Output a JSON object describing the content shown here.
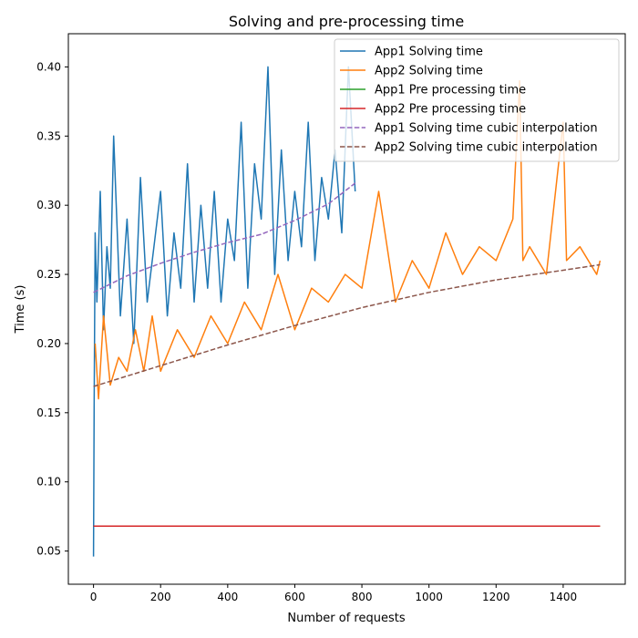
{
  "chart_data": {
    "type": "line",
    "title": "Solving and pre-processing time",
    "xlabel": "Number of requests",
    "ylabel": "Time (s)",
    "xlim": [
      -75,
      1585
    ],
    "ylim": [
      0.026,
      0.424
    ],
    "xticks": [
      0,
      200,
      400,
      600,
      800,
      1000,
      1200,
      1400
    ],
    "xtick_labels": [
      "0",
      "200",
      "400",
      "600",
      "800",
      "1000",
      "1200",
      "1400"
    ],
    "yticks": [
      0.05,
      0.1,
      0.15,
      0.2,
      0.25,
      0.3,
      0.35,
      0.4
    ],
    "ytick_labels": [
      "0.05",
      "0.10",
      "0.15",
      "0.20",
      "0.25",
      "0.30",
      "0.35",
      "0.40"
    ],
    "grid": false,
    "legend_position": "top-right",
    "series": [
      {
        "name": "App1 Solving time",
        "color": "#1f77b4",
        "style": "solid",
        "x": [
          0,
          2,
          5,
          10,
          20,
          30,
          40,
          50,
          60,
          80,
          100,
          120,
          140,
          160,
          180,
          200,
          220,
          240,
          260,
          280,
          300,
          320,
          340,
          360,
          380,
          400,
          420,
          440,
          460,
          480,
          500,
          520,
          540,
          560,
          580,
          600,
          620,
          640,
          660,
          680,
          700,
          720,
          740,
          760,
          780
        ],
        "y": [
          0.046,
          0.155,
          0.28,
          0.23,
          0.31,
          0.21,
          0.27,
          0.24,
          0.35,
          0.22,
          0.29,
          0.2,
          0.32,
          0.23,
          0.27,
          0.31,
          0.22,
          0.28,
          0.24,
          0.33,
          0.23,
          0.3,
          0.24,
          0.31,
          0.23,
          0.29,
          0.26,
          0.36,
          0.24,
          0.33,
          0.29,
          0.4,
          0.25,
          0.34,
          0.26,
          0.31,
          0.27,
          0.36,
          0.26,
          0.32,
          0.29,
          0.34,
          0.28,
          0.4,
          0.31
        ]
      },
      {
        "name": "App2 Solving time",
        "color": "#ff7f0e",
        "style": "solid",
        "x": [
          5,
          15,
          30,
          50,
          75,
          100,
          125,
          150,
          175,
          200,
          250,
          300,
          350,
          400,
          450,
          500,
          550,
          600,
          650,
          700,
          750,
          800,
          850,
          900,
          950,
          1000,
          1050,
          1100,
          1150,
          1200,
          1250,
          1270,
          1280,
          1300,
          1350,
          1400,
          1410,
          1450,
          1500,
          1510
        ],
        "y": [
          0.2,
          0.16,
          0.22,
          0.17,
          0.19,
          0.18,
          0.21,
          0.18,
          0.22,
          0.18,
          0.21,
          0.19,
          0.22,
          0.2,
          0.23,
          0.21,
          0.25,
          0.21,
          0.24,
          0.23,
          0.25,
          0.24,
          0.31,
          0.23,
          0.26,
          0.24,
          0.28,
          0.25,
          0.27,
          0.26,
          0.29,
          0.39,
          0.26,
          0.27,
          0.25,
          0.36,
          0.26,
          0.27,
          0.25,
          0.26
        ]
      },
      {
        "name": "App1 Pre processing time",
        "color": "#2ca02c",
        "style": "solid",
        "x": [
          0,
          1510
        ],
        "y": [
          0.068,
          0.068
        ]
      },
      {
        "name": "App2 Pre processing time",
        "color": "#d62728",
        "style": "solid",
        "x": [
          0,
          1510
        ],
        "y": [
          0.068,
          0.068
        ]
      },
      {
        "name": "App1 Solving time cubic interpolation",
        "color": "#9467bd",
        "style": "dashed",
        "x": [
          0,
          100,
          200,
          300,
          400,
          500,
          600,
          700,
          780
        ],
        "y": [
          0.237,
          0.249,
          0.258,
          0.266,
          0.273,
          0.279,
          0.289,
          0.301,
          0.316
        ]
      },
      {
        "name": "App2 Solving time cubic interpolation",
        "color": "#8c564b",
        "style": "dashed",
        "x": [
          0,
          200,
          400,
          600,
          800,
          1000,
          1200,
          1400,
          1510
        ],
        "y": [
          0.169,
          0.184,
          0.199,
          0.213,
          0.226,
          0.237,
          0.246,
          0.253,
          0.257
        ]
      }
    ]
  }
}
